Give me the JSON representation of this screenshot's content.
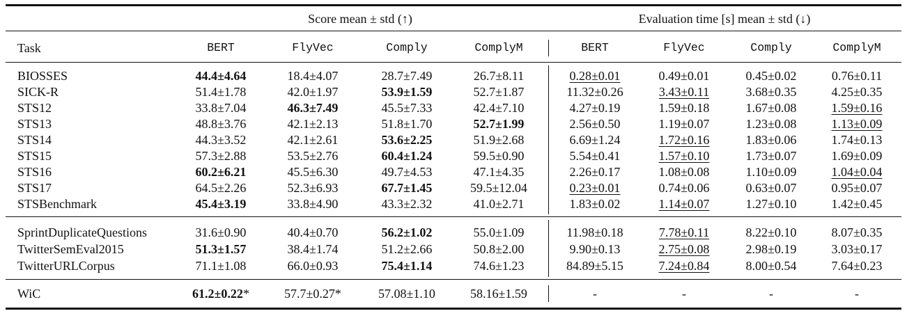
{
  "headers": {
    "score_group": "Score mean ± std (↑)",
    "time_group": "Evaluation time [s] mean ± std (↓)",
    "task": "Task",
    "models": [
      "BERT",
      "FlyVec",
      "Comply",
      "ComplyM",
      "BERT",
      "FlyVec",
      "Comply",
      "ComplyM"
    ]
  },
  "sections": [
    {
      "rows": [
        {
          "task": "BIOSSES",
          "score": [
            {
              "v": "44.4±4.64",
              "b": true
            },
            {
              "v": "18.4±4.07"
            },
            {
              "v": "28.7±7.49"
            },
            {
              "v": "26.7±8.11"
            }
          ],
          "time": [
            {
              "v": "0.28±0.01",
              "u": true
            },
            {
              "v": "0.49±0.01"
            },
            {
              "v": "0.45±0.02"
            },
            {
              "v": "0.76±0.11"
            }
          ]
        },
        {
          "task": "SICK-R",
          "score": [
            {
              "v": "51.4±1.78"
            },
            {
              "v": "42.0±1.97"
            },
            {
              "v": "53.9±1.59",
              "b": true
            },
            {
              "v": "52.7±1.87"
            }
          ],
          "time": [
            {
              "v": "11.32±0.26"
            },
            {
              "v": "3.43±0.11",
              "u": true
            },
            {
              "v": "3.68±0.35"
            },
            {
              "v": "4.25±0.35"
            }
          ]
        },
        {
          "task": "STS12",
          "score": [
            {
              "v": "33.8±7.04"
            },
            {
              "v": "46.3±7.49",
              "b": true
            },
            {
              "v": "45.5±7.33"
            },
            {
              "v": "42.4±7.10"
            }
          ],
          "time": [
            {
              "v": "4.27±0.19"
            },
            {
              "v": "1.59±0.18"
            },
            {
              "v": "1.67±0.08"
            },
            {
              "v": "1.59±0.16",
              "u": true
            }
          ]
        },
        {
          "task": "STS13",
          "score": [
            {
              "v": "48.8±3.76"
            },
            {
              "v": "42.1±2.13"
            },
            {
              "v": "51.8±1.70"
            },
            {
              "v": "52.7±1.99",
              "b": true
            }
          ],
          "time": [
            {
              "v": "2.56±0.50"
            },
            {
              "v": "1.19±0.07"
            },
            {
              "v": "1.23±0.08"
            },
            {
              "v": "1.13±0.09",
              "u": true
            }
          ]
        },
        {
          "task": "STS14",
          "score": [
            {
              "v": "44.3±3.52"
            },
            {
              "v": "42.1±2.61"
            },
            {
              "v": "53.6±2.25",
              "b": true
            },
            {
              "v": "51.9±2.68"
            }
          ],
          "time": [
            {
              "v": "6.69±1.24"
            },
            {
              "v": "1.72±0.16",
              "u": true
            },
            {
              "v": "1.83±0.06"
            },
            {
              "v": "1.74±0.13"
            }
          ]
        },
        {
          "task": "STS15",
          "score": [
            {
              "v": "57.3±2.88"
            },
            {
              "v": "53.5±2.76"
            },
            {
              "v": "60.4±1.24",
              "b": true
            },
            {
              "v": "59.5±0.90"
            }
          ],
          "time": [
            {
              "v": "5.54±0.41"
            },
            {
              "v": "1.57±0.10",
              "u": true
            },
            {
              "v": "1.73±0.07"
            },
            {
              "v": "1.69±0.09"
            }
          ]
        },
        {
          "task": "STS16",
          "score": [
            {
              "v": "60.2±6.21",
              "b": true
            },
            {
              "v": "45.5±6.30"
            },
            {
              "v": "49.7±4.53"
            },
            {
              "v": "47.1±4.35"
            }
          ],
          "time": [
            {
              "v": "2.26±0.17"
            },
            {
              "v": "1.08±0.08"
            },
            {
              "v": "1.10±0.09"
            },
            {
              "v": "1.04±0.04",
              "u": true
            }
          ]
        },
        {
          "task": "STS17",
          "score": [
            {
              "v": "64.5±2.26"
            },
            {
              "v": "52.3±6.93"
            },
            {
              "v": "67.7±1.45",
              "b": true
            },
            {
              "v": "59.5±12.04"
            }
          ],
          "time": [
            {
              "v": "0.23±0.01",
              "u": true
            },
            {
              "v": "0.74±0.06"
            },
            {
              "v": "0.63±0.07"
            },
            {
              "v": "0.95±0.07"
            }
          ]
        },
        {
          "task": "STSBenchmark",
          "score": [
            {
              "v": "45.4±3.19",
              "b": true
            },
            {
              "v": "33.8±4.90"
            },
            {
              "v": "43.3±2.32"
            },
            {
              "v": "41.0±2.71"
            }
          ],
          "time": [
            {
              "v": "1.83±0.02"
            },
            {
              "v": "1.14±0.07",
              "u": true
            },
            {
              "v": "1.27±0.10"
            },
            {
              "v": "1.42±0.45"
            }
          ]
        }
      ]
    },
    {
      "rows": [
        {
          "task": "SprintDuplicateQuestions",
          "score": [
            {
              "v": "31.6±0.90"
            },
            {
              "v": "40.4±0.70"
            },
            {
              "v": "56.2±1.02",
              "b": true
            },
            {
              "v": "55.0±1.09"
            }
          ],
          "time": [
            {
              "v": "11.98±0.18"
            },
            {
              "v": "7.78±0.11",
              "u": true
            },
            {
              "v": "8.22±0.10"
            },
            {
              "v": "8.07±0.35"
            }
          ]
        },
        {
          "task": "TwitterSemEval2015",
          "score": [
            {
              "v": "51.3±1.57",
              "b": true
            },
            {
              "v": "38.4±1.74"
            },
            {
              "v": "51.2±2.66"
            },
            {
              "v": "50.8±2.00"
            }
          ],
          "time": [
            {
              "v": "9.90±0.13"
            },
            {
              "v": "2.75±0.08",
              "u": true
            },
            {
              "v": "2.98±0.19"
            },
            {
              "v": "3.03±0.17"
            }
          ]
        },
        {
          "task": "TwitterURLCorpus",
          "score": [
            {
              "v": "71.1±1.08"
            },
            {
              "v": "66.0±0.93"
            },
            {
              "v": "75.4±1.14",
              "b": true
            },
            {
              "v": "74.6±1.23"
            }
          ],
          "time": [
            {
              "v": "84.89±5.15"
            },
            {
              "v": "7.24±0.84",
              "u": true
            },
            {
              "v": "8.00±0.54"
            },
            {
              "v": "7.64±0.23"
            }
          ]
        }
      ]
    },
    {
      "rows": [
        {
          "task": "WiC",
          "score": [
            {
              "v": "61.2±0.22",
              "b": true,
              "star": "*"
            },
            {
              "v": "57.7±0.27*"
            },
            {
              "v": "57.08±1.10"
            },
            {
              "v": "58.16±1.59"
            }
          ],
          "time": [
            {
              "v": "-"
            },
            {
              "v": "-"
            },
            {
              "v": "-"
            },
            {
              "v": "-"
            }
          ]
        }
      ]
    }
  ]
}
